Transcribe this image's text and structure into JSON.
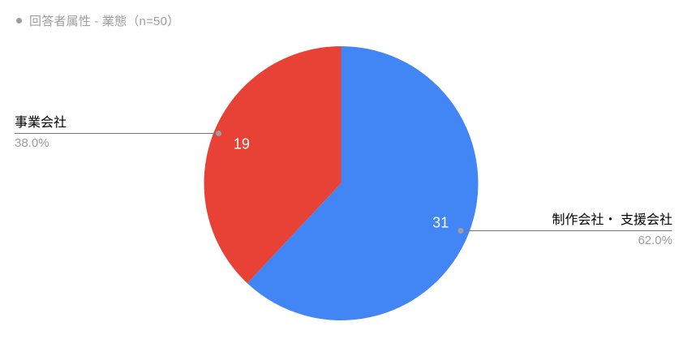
{
  "header": {
    "title": "回答者属性 - 業態（n=50）"
  },
  "chart_data": {
    "type": "pie",
    "title": "回答者属性 - 業態（n=50）",
    "n": 50,
    "start_angle_deg": -90,
    "direction": "clockwise",
    "value_label_color": "#FFFFFF",
    "leader_line_color": "#757575",
    "leader_dot_color": "#9e9e9e",
    "segments": [
      {
        "label": "制作会社・ 支援会社",
        "value": 31,
        "percent": "62.0%",
        "color": "#4285F4"
      },
      {
        "label": "事業会社",
        "value": 19,
        "percent": "38.0%",
        "color": "#E74235"
      }
    ]
  }
}
